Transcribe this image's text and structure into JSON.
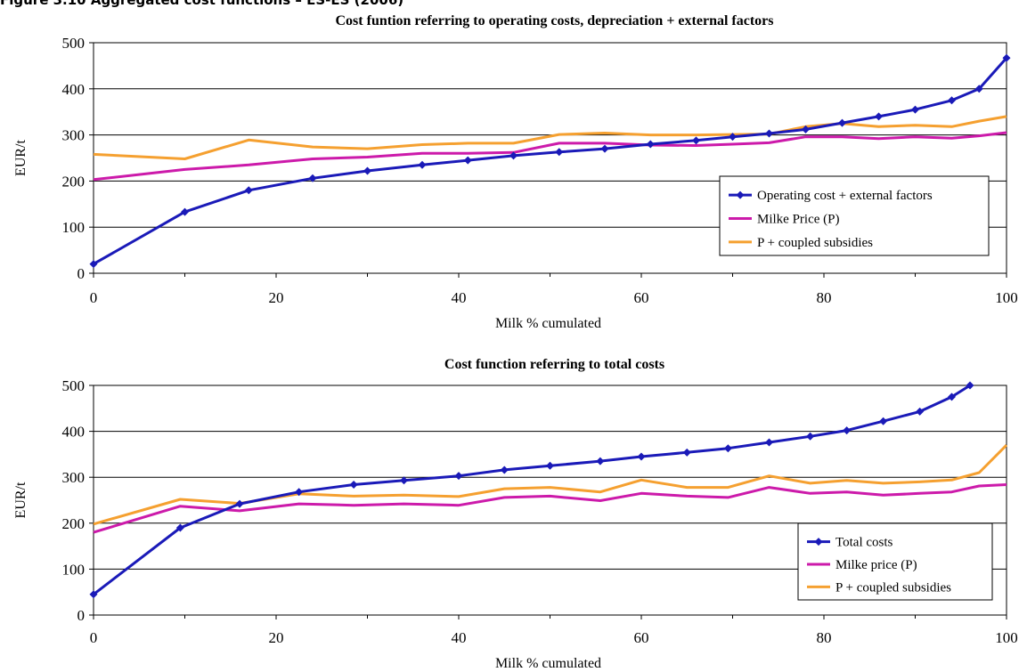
{
  "figure": {
    "caption": "Figure 3.10 Aggregated cost functions – ES-ES (2006)"
  },
  "colors": {
    "blue": "#1a1ab8",
    "magenta": "#cc1aaa",
    "orange": "#f5a030"
  },
  "chart_data": [
    {
      "type": "line",
      "title": "Cost funtion referring to operating costs, depreciation + external factors",
      "xlabel": "Milk % cumulated",
      "ylabel": "EUR/t",
      "xlim": [
        0,
        100
      ],
      "ylim": [
        0,
        500
      ],
      "xticks": [
        "0",
        "20",
        "40",
        "60",
        "80",
        "100"
      ],
      "yticks": [
        "0",
        "100",
        "200",
        "300",
        "400",
        "500"
      ],
      "grid": "horizontal",
      "legend_position": "lower-right",
      "series": [
        {
          "name": "Operating cost + external factors",
          "color": "#1a1ab8",
          "marker": "diamond",
          "x": [
            0,
            10,
            17,
            24,
            30,
            36,
            41,
            46,
            51,
            56,
            61,
            66,
            70,
            74,
            78,
            82,
            86,
            90,
            94,
            97,
            100
          ],
          "y": [
            20,
            133,
            180,
            206,
            222,
            235,
            245,
            255,
            263,
            270,
            280,
            288,
            296,
            303,
            312,
            326,
            340,
            355,
            375,
            400,
            467
          ]
        },
        {
          "name": "Milke Price (P)",
          "color": "#cc1aaa",
          "marker": "none",
          "x": [
            0,
            10,
            17,
            24,
            30,
            36,
            41,
            46,
            51,
            56,
            61,
            66,
            70,
            74,
            78,
            82,
            86,
            90,
            94,
            97,
            100
          ],
          "y": [
            203,
            225,
            235,
            248,
            252,
            260,
            260,
            262,
            282,
            282,
            278,
            277,
            280,
            283,
            296,
            296,
            292,
            296,
            293,
            298,
            305
          ]
        },
        {
          "name": "P + coupled subsidies",
          "color": "#f5a030",
          "marker": "none",
          "x": [
            0,
            10,
            17,
            24,
            30,
            36,
            41,
            46,
            51,
            56,
            61,
            66,
            70,
            74,
            78,
            82,
            86,
            90,
            94,
            97,
            100
          ],
          "y": [
            258,
            248,
            289,
            274,
            270,
            279,
            282,
            282,
            301,
            304,
            300,
            300,
            301,
            302,
            318,
            325,
            318,
            321,
            318,
            330,
            340
          ]
        }
      ]
    },
    {
      "type": "line",
      "title": "Cost function referring to total costs",
      "xlabel": "Milk % cumulated",
      "ylabel": "EUR/t",
      "xlim": [
        0,
        100
      ],
      "ylim": [
        0,
        500
      ],
      "xticks": [
        "0",
        "20",
        "40",
        "60",
        "80",
        "100"
      ],
      "yticks": [
        "0",
        "100",
        "200",
        "300",
        "400",
        "500"
      ],
      "grid": "horizontal",
      "legend_position": "lower-right",
      "series": [
        {
          "name": "Total costs",
          "color": "#1a1ab8",
          "marker": "diamond",
          "x": [
            0,
            9.5,
            16,
            22.5,
            28.5,
            34,
            40,
            45,
            50,
            55.5,
            60,
            65,
            69.5,
            74,
            78.5,
            82.5,
            86.5,
            90.5,
            94,
            96
          ],
          "y": [
            45,
            190,
            242,
            268,
            284,
            293,
            303,
            316,
            325,
            335,
            345,
            354,
            363,
            376,
            389,
            402,
            422,
            443,
            475,
            500
          ]
        },
        {
          "name": "Milke price (P)",
          "color": "#cc1aaa",
          "marker": "none",
          "x": [
            0,
            9.5,
            16,
            22.5,
            28.5,
            34,
            40,
            45,
            50,
            55.5,
            60,
            65,
            69.5,
            74,
            78.5,
            82.5,
            86.5,
            90.5,
            94,
            97,
            100
          ],
          "y": [
            180,
            237,
            227,
            242,
            239,
            242,
            239,
            256,
            259,
            249,
            265,
            259,
            256,
            278,
            265,
            268,
            261,
            265,
            268,
            281,
            284
          ]
        },
        {
          "name": "P + coupled subsidies",
          "color": "#f5a030",
          "marker": "none",
          "x": [
            0,
            9.5,
            16,
            22.5,
            28.5,
            34,
            40,
            45,
            50,
            55.5,
            60,
            65,
            69.5,
            74,
            78.5,
            82.5,
            86.5,
            90.5,
            94,
            97,
            100
          ],
          "y": [
            198,
            252,
            243,
            264,
            259,
            261,
            258,
            275,
            278,
            268,
            294,
            278,
            278,
            303,
            287,
            293,
            287,
            290,
            294,
            310,
            370
          ]
        }
      ]
    }
  ]
}
